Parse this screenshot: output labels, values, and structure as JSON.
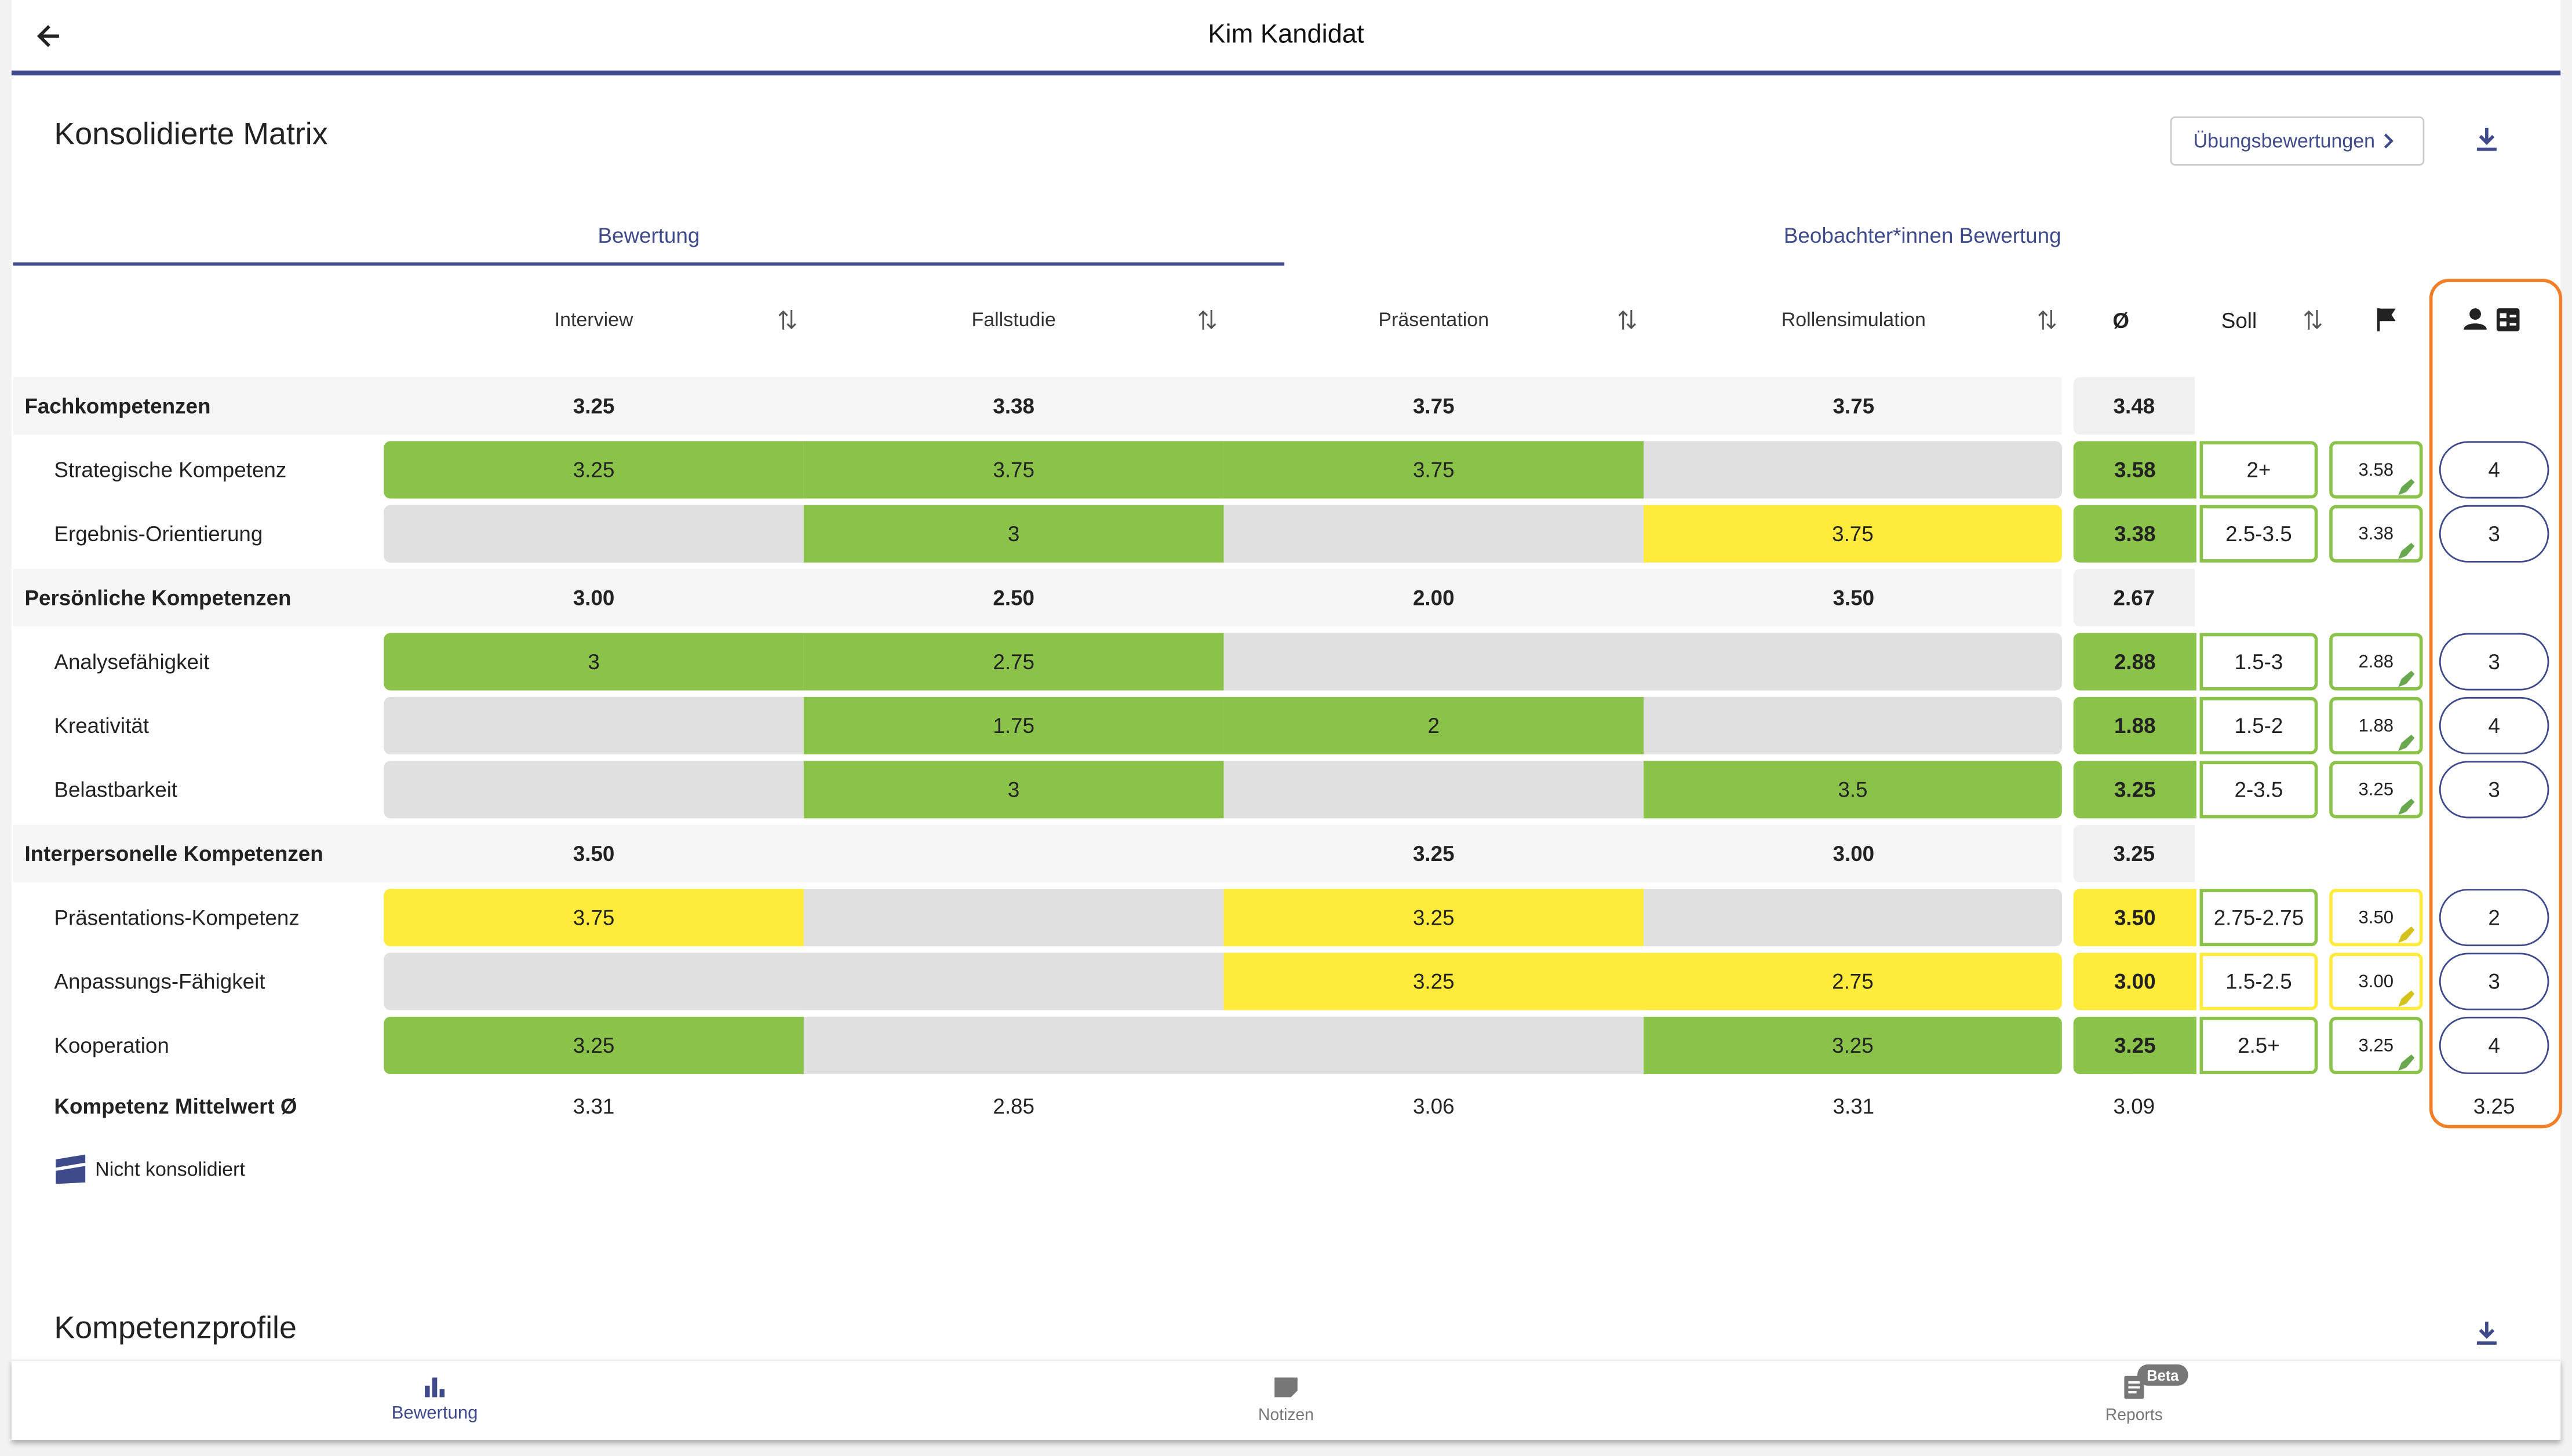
{
  "header": {
    "title": "Kim Kandidat"
  },
  "section": {
    "title": "Konsolidierte Matrix",
    "button": "Übungsbewertungen"
  },
  "tabs": [
    "Bewertung",
    "Beobachter*innen Bewertung"
  ],
  "columns": [
    "Interview",
    "Fallstudie",
    "Präsentation",
    "Rollensimulation",
    "Ø",
    "Soll"
  ],
  "rows": [
    {
      "label": "Fachkompetenzen",
      "group": true,
      "cells": [
        {
          "value": "3.25"
        },
        {
          "value": "3.38"
        },
        {
          "value": "3.75"
        },
        {
          "value": "3.75"
        }
      ],
      "avg": "3.48"
    },
    {
      "label": "Strategische Kompetenz",
      "cells": [
        {
          "value": "3.25",
          "color": "#8bc34a"
        },
        {
          "value": "3.75",
          "color": "#8bc34a"
        },
        {
          "value": "3.75",
          "color": "#8bc34a"
        },
        {
          "value": null,
          "color": "#e0e0e0"
        }
      ],
      "avg": "3.58",
      "avg_color": "#8bc34a",
      "soll": "2+",
      "soll_color": "#8bc34a",
      "adjusted": "3.58",
      "adjusted_color": "#8bc34a",
      "rating": "4"
    },
    {
      "label": "Ergebnis-Orientierung",
      "cells": [
        {
          "value": null,
          "color": "#e0e0e0"
        },
        {
          "value": "3",
          "color": "#8bc34a"
        },
        {
          "value": null,
          "color": "#e0e0e0"
        },
        {
          "value": "3.75",
          "color": "#ffeb3b"
        }
      ],
      "avg": "3.38",
      "avg_color": "#8bc34a",
      "soll": "2.5-3.5",
      "soll_color": "#8bc34a",
      "adjusted": "3.38",
      "adjusted_color": "#8bc34a",
      "rating": "3"
    },
    {
      "label": "Persönliche Kompetenzen",
      "group": true,
      "cells": [
        {
          "value": "3.00"
        },
        {
          "value": "2.50"
        },
        {
          "value": "2.00"
        },
        {
          "value": "3.50"
        }
      ],
      "avg": "2.67"
    },
    {
      "label": "Analysefähigkeit",
      "cells": [
        {
          "value": "3",
          "color": "#8bc34a"
        },
        {
          "value": "2.75",
          "color": "#8bc34a"
        },
        {
          "value": null,
          "color": "#e0e0e0"
        },
        {
          "value": null,
          "color": "#e0e0e0"
        }
      ],
      "avg": "2.88",
      "avg_color": "#8bc34a",
      "soll": "1.5-3",
      "soll_color": "#8bc34a",
      "adjusted": "2.88",
      "adjusted_color": "#8bc34a",
      "rating": "3"
    },
    {
      "label": "Kreativität",
      "cells": [
        {
          "value": null,
          "color": "#e0e0e0"
        },
        {
          "value": "1.75",
          "color": "#8bc34a"
        },
        {
          "value": "2",
          "color": "#8bc34a"
        },
        {
          "value": null,
          "color": "#e0e0e0"
        }
      ],
      "avg": "1.88",
      "avg_color": "#8bc34a",
      "soll": "1.5-2",
      "soll_color": "#8bc34a",
      "adjusted": "1.88",
      "adjusted_color": "#8bc34a",
      "rating": "4"
    },
    {
      "label": "Belastbarkeit",
      "cells": [
        {
          "value": null,
          "color": "#e0e0e0"
        },
        {
          "value": "3",
          "color": "#8bc34a"
        },
        {
          "value": null,
          "color": "#e0e0e0"
        },
        {
          "value": "3.5",
          "color": "#8bc34a"
        }
      ],
      "avg": "3.25",
      "avg_color": "#8bc34a",
      "soll": "2-3.5",
      "soll_color": "#8bc34a",
      "adjusted": "3.25",
      "adjusted_color": "#8bc34a",
      "rating": "3"
    },
    {
      "label": "Interpersonelle Kompetenzen",
      "group": true,
      "cells": [
        {
          "value": "3.50"
        },
        {
          "value": null
        },
        {
          "value": "3.25"
        },
        {
          "value": "3.00"
        }
      ],
      "avg": "3.25"
    },
    {
      "label": "Präsentations-Kompetenz",
      "cells": [
        {
          "value": "3.75",
          "color": "#ffeb3b"
        },
        {
          "value": null,
          "color": "#e0e0e0"
        },
        {
          "value": "3.25",
          "color": "#ffeb3b"
        },
        {
          "value": null,
          "color": "#e0e0e0"
        }
      ],
      "avg": "3.50",
      "avg_color": "#ffeb3b",
      "soll": "2.75-2.75",
      "soll_color": "#8bc34a",
      "adjusted": "3.50",
      "adjusted_color": "#ffeb3b",
      "rating": "2"
    },
    {
      "label": "Anpassungs-Fähigkeit",
      "cells": [
        {
          "value": null,
          "color": "#e0e0e0"
        },
        {
          "value": null,
          "color": "#e0e0e0"
        },
        {
          "value": "3.25",
          "color": "#ffeb3b"
        },
        {
          "value": "2.75",
          "color": "#ffeb3b"
        }
      ],
      "avg": "3.00",
      "avg_color": "#ffeb3b",
      "soll": "1.5-2.5",
      "soll_color": "#ffeb3b",
      "adjusted": "3.00",
      "adjusted_color": "#ffeb3b",
      "rating": "3"
    },
    {
      "label": "Kooperation",
      "cells": [
        {
          "value": "3.25",
          "color": "#8bc34a"
        },
        {
          "value": null,
          "color": "#e0e0e0"
        },
        {
          "value": null,
          "color": "#e0e0e0"
        },
        {
          "value": "3.25",
          "color": "#8bc34a"
        }
      ],
      "avg": "3.25",
      "avg_color": "#8bc34a",
      "soll": "2.5+",
      "soll_color": "#8bc34a",
      "adjusted": "3.25",
      "adjusted_color": "#8bc34a",
      "rating": "4"
    }
  ],
  "footer": {
    "label": "Kompetenz Mittelwert Ø",
    "values": [
      "3.31",
      "2.85",
      "3.06",
      "3.31"
    ],
    "avg": "3.09",
    "rating_avg": "3.25"
  },
  "legend": "Nicht konsolidiert",
  "section2": {
    "title": "Kompetenzprofile"
  },
  "nav": [
    "Bewertung",
    "Notizen",
    "Reports"
  ],
  "badge": "Beta"
}
